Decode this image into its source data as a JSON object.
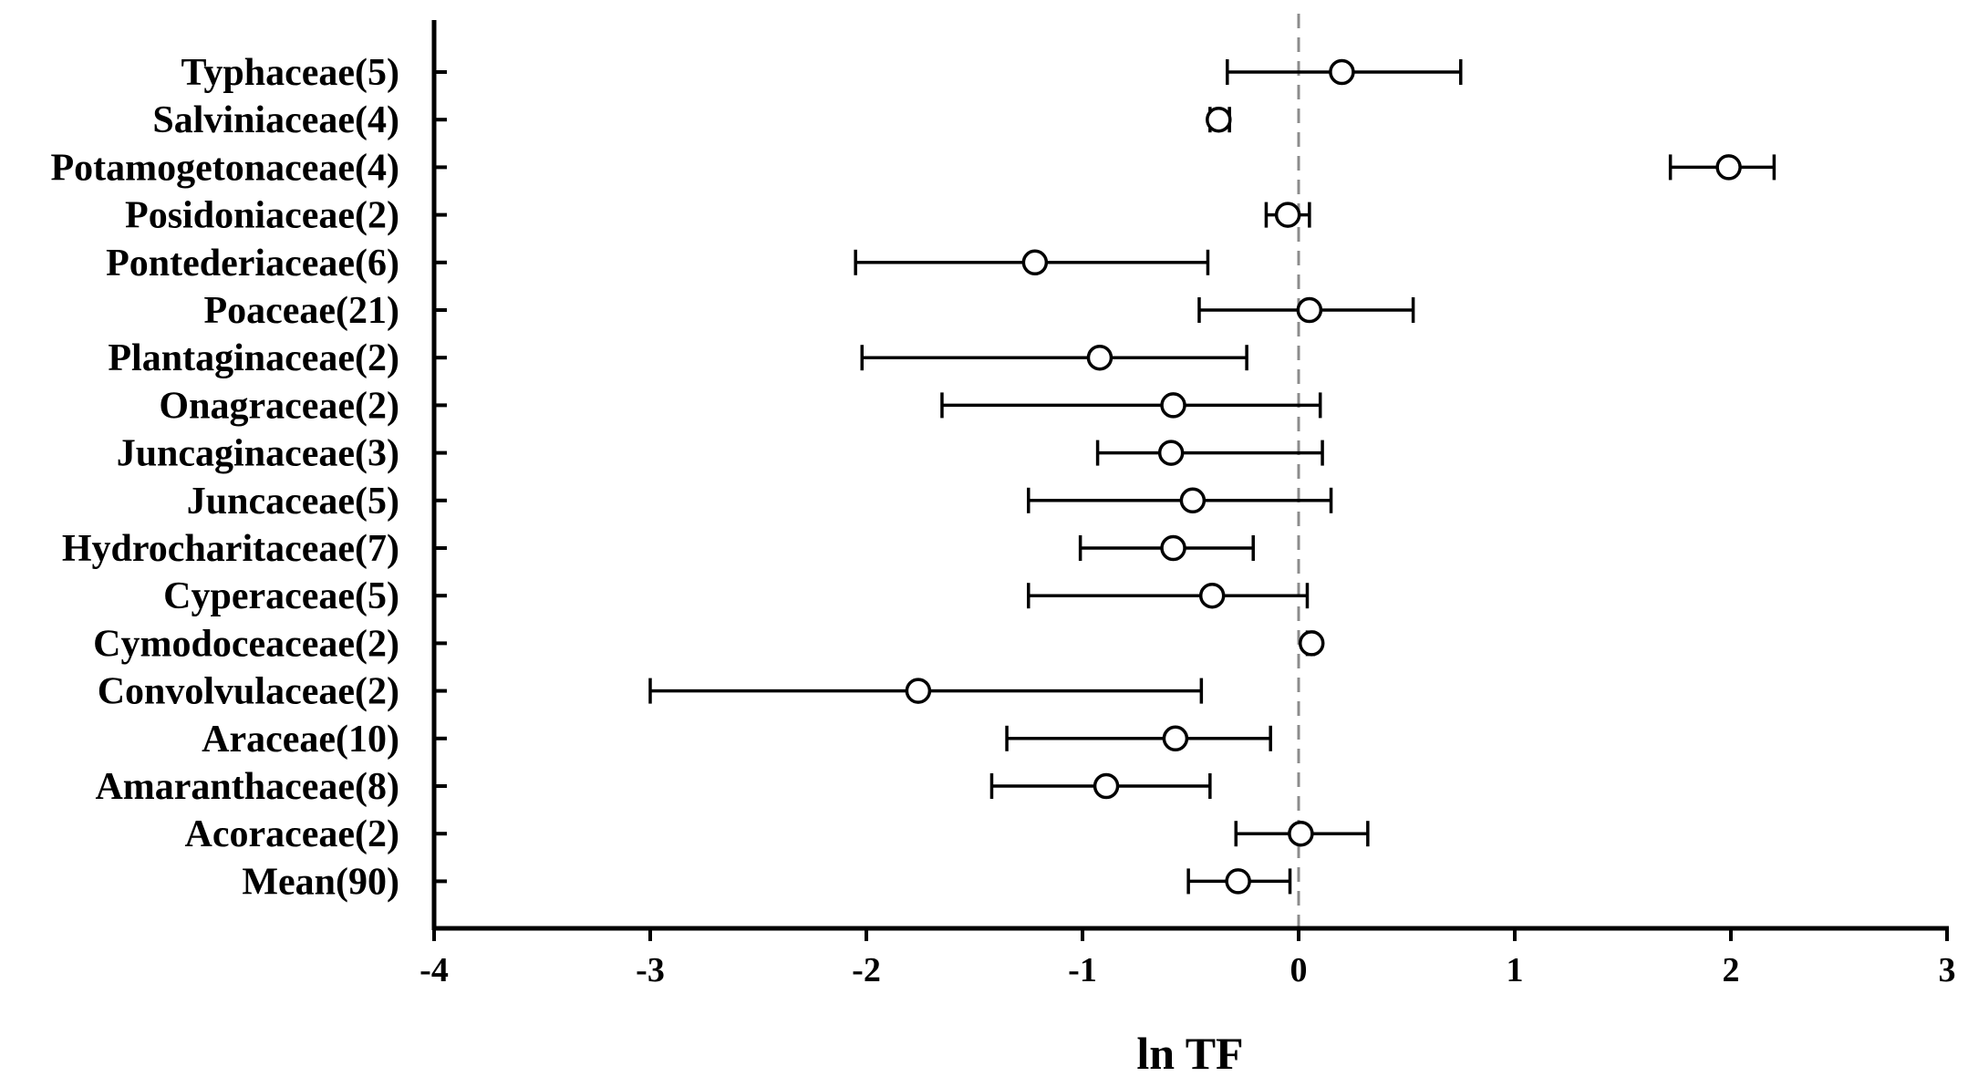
{
  "chart_data": {
    "type": "scatter",
    "subtype": "forest-plot",
    "title": "",
    "xlabel": "ln TF",
    "ylabel": "",
    "xlim": [
      -4,
      3
    ],
    "xticks": [
      "-4",
      "-3",
      "-2",
      "-1",
      "0",
      "1",
      "2",
      "3"
    ],
    "reference_line": {
      "x": 0,
      "style": "dashed",
      "color": "#8c8c8c"
    },
    "grid": false,
    "legend": "none",
    "marker": "open-circle",
    "colors": {
      "axis": "#000000",
      "marker_fill": "#ffffff",
      "marker_stroke": "#000000"
    },
    "categories": [
      "Typhaceae(5)",
      "Salviniaceae(4)",
      "Potamogetonaceae(4)",
      "Posidoniaceae(2)",
      "Pontederiaceae(6)",
      "Poaceae(21)",
      "Plantaginaceae(2)",
      "Onagraceae(2)",
      "Juncaginaceae(3)",
      "Juncaceae(5)",
      "Hydrocharitaceae(7)",
      "Cyperaceae(5)",
      "Cymodoceaceae(2)",
      "Convolvulaceae(2)",
      "Araceae(10)",
      "Amaranthaceae(8)",
      "Acoraceae(2)",
      "Mean(90)"
    ],
    "estimates": [
      0.2,
      -0.37,
      1.99,
      -0.05,
      -1.22,
      0.05,
      -0.92,
      -0.58,
      -0.59,
      -0.49,
      -0.58,
      -0.4,
      0.06,
      -1.76,
      -0.57,
      -0.89,
      0.01,
      -0.28
    ],
    "lower": [
      -0.33,
      -0.41,
      1.72,
      -0.15,
      -2.05,
      -0.46,
      -2.02,
      -1.65,
      -0.93,
      -1.25,
      -1.01,
      -1.25,
      0.04,
      -3.0,
      -1.35,
      -1.42,
      -0.29,
      -0.51
    ],
    "upper": [
      0.75,
      -0.32,
      2.2,
      0.05,
      -0.42,
      0.53,
      -0.24,
      0.1,
      0.11,
      0.15,
      -0.21,
      0.04,
      0.07,
      -0.45,
      -0.13,
      -0.41,
      0.32,
      -0.04
    ]
  }
}
